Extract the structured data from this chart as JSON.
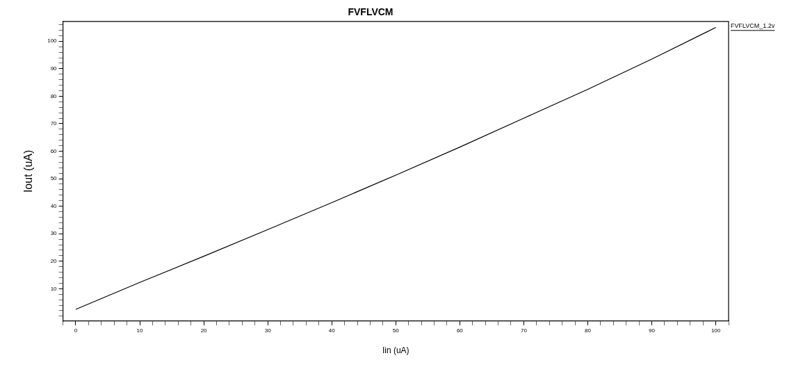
{
  "chart_data": {
    "type": "line",
    "title": "FVFLVCM",
    "xlabel": "Iin (uA)",
    "ylabel": "Iout (uA)",
    "x": [
      0,
      10,
      20,
      30,
      40,
      50,
      60,
      70,
      80,
      90,
      100
    ],
    "series": [
      {
        "name": "FVFLVCM_1.2v",
        "color": "#000000",
        "values": [
          2.5,
          12.3,
          21.8,
          31.5,
          41.3,
          51.3,
          61.5,
          72.0,
          82.5,
          93.5,
          105
        ]
      }
    ],
    "xlim": [
      -2,
      102
    ],
    "ylim": [
      -1.8,
      107.2
    ],
    "xticks": [
      {
        "value": -2,
        "label": null
      },
      0,
      {
        "value": 2,
        "label": null
      },
      {
        "value": 4,
        "label": null
      },
      {
        "value": 6,
        "label": null
      },
      {
        "value": 8,
        "label": null
      },
      10,
      {
        "value": 12,
        "label": null
      },
      {
        "value": 14,
        "label": null
      },
      {
        "value": 16,
        "label": null
      },
      {
        "value": 18,
        "label": null
      },
      20,
      {
        "value": 22,
        "label": null
      },
      {
        "value": 24,
        "label": null
      },
      {
        "value": 26,
        "label": null
      },
      {
        "value": 28,
        "label": null
      },
      30,
      {
        "value": 32,
        "label": null
      },
      {
        "value": 34,
        "label": null
      },
      {
        "value": 36,
        "label": null
      },
      {
        "value": 38,
        "label": null
      },
      40,
      {
        "value": 42,
        "label": null
      },
      {
        "value": 44,
        "label": null
      },
      {
        "value": 46,
        "label": null
      },
      {
        "value": 48,
        "label": null
      },
      50,
      {
        "value": 52,
        "label": null
      },
      {
        "value": 54,
        "label": null
      },
      {
        "value": 56,
        "label": null
      },
      {
        "value": 58,
        "label": null
      },
      60,
      {
        "value": 62,
        "label": null
      },
      {
        "value": 64,
        "label": null
      },
      {
        "value": 66,
        "label": null
      },
      {
        "value": 68,
        "label": null
      },
      70,
      {
        "value": 72,
        "label": null
      },
      {
        "value": 74,
        "label": null
      },
      {
        "value": 76,
        "label": null
      },
      {
        "value": 78,
        "label": null
      },
      80,
      {
        "value": 82,
        "label": null
      },
      {
        "value": 84,
        "label": null
      },
      {
        "value": 86,
        "label": null
      },
      {
        "value": 88,
        "label": null
      },
      90,
      {
        "value": 92,
        "label": null
      },
      {
        "value": 94,
        "label": null
      },
      {
        "value": 96,
        "label": null
      },
      {
        "value": 98,
        "label": null
      },
      100,
      {
        "value": 102,
        "label": null
      }
    ],
    "yticks": [
      {
        "value": 0,
        "label": null
      },
      {
        "value": 2,
        "label": null
      },
      {
        "value": 4,
        "label": null
      },
      {
        "value": 6,
        "label": null
      },
      {
        "value": 8,
        "label": null
      },
      10,
      {
        "value": 12,
        "label": null
      },
      {
        "value": 14,
        "label": null
      },
      {
        "value": 16,
        "label": null
      },
      {
        "value": 18,
        "label": null
      },
      20,
      {
        "value": 22,
        "label": null
      },
      {
        "value": 24,
        "label": null
      },
      {
        "value": 26,
        "label": null
      },
      {
        "value": 28,
        "label": null
      },
      30,
      {
        "value": 32,
        "label": null
      },
      {
        "value": 34,
        "label": null
      },
      {
        "value": 36,
        "label": null
      },
      {
        "value": 38,
        "label": null
      },
      40,
      {
        "value": 42,
        "label": null
      },
      {
        "value": 44,
        "label": null
      },
      {
        "value": 46,
        "label": null
      },
      {
        "value": 48,
        "label": null
      },
      50,
      {
        "value": 52,
        "label": null
      },
      {
        "value": 54,
        "label": null
      },
      {
        "value": 56,
        "label": null
      },
      {
        "value": 58,
        "label": null
      },
      60,
      {
        "value": 62,
        "label": null
      },
      {
        "value": 64,
        "label": null
      },
      {
        "value": 66,
        "label": null
      },
      {
        "value": 68,
        "label": null
      },
      70,
      {
        "value": 72,
        "label": null
      },
      {
        "value": 74,
        "label": null
      },
      {
        "value": 76,
        "label": null
      },
      {
        "value": 78,
        "label": null
      },
      80,
      {
        "value": 82,
        "label": null
      },
      {
        "value": 84,
        "label": null
      },
      {
        "value": 86,
        "label": null
      },
      {
        "value": 88,
        "label": null
      },
      90,
      {
        "value": 92,
        "label": null
      },
      {
        "value": 94,
        "label": null
      },
      {
        "value": 96,
        "label": null
      },
      {
        "value": 98,
        "label": null
      },
      100,
      {
        "value": 102,
        "label": null
      },
      {
        "value": 104,
        "label": null
      },
      {
        "value": 106,
        "label": null
      }
    ],
    "grid": false,
    "legend": "top right",
    "marker": "none",
    "line_style": "solid"
  }
}
